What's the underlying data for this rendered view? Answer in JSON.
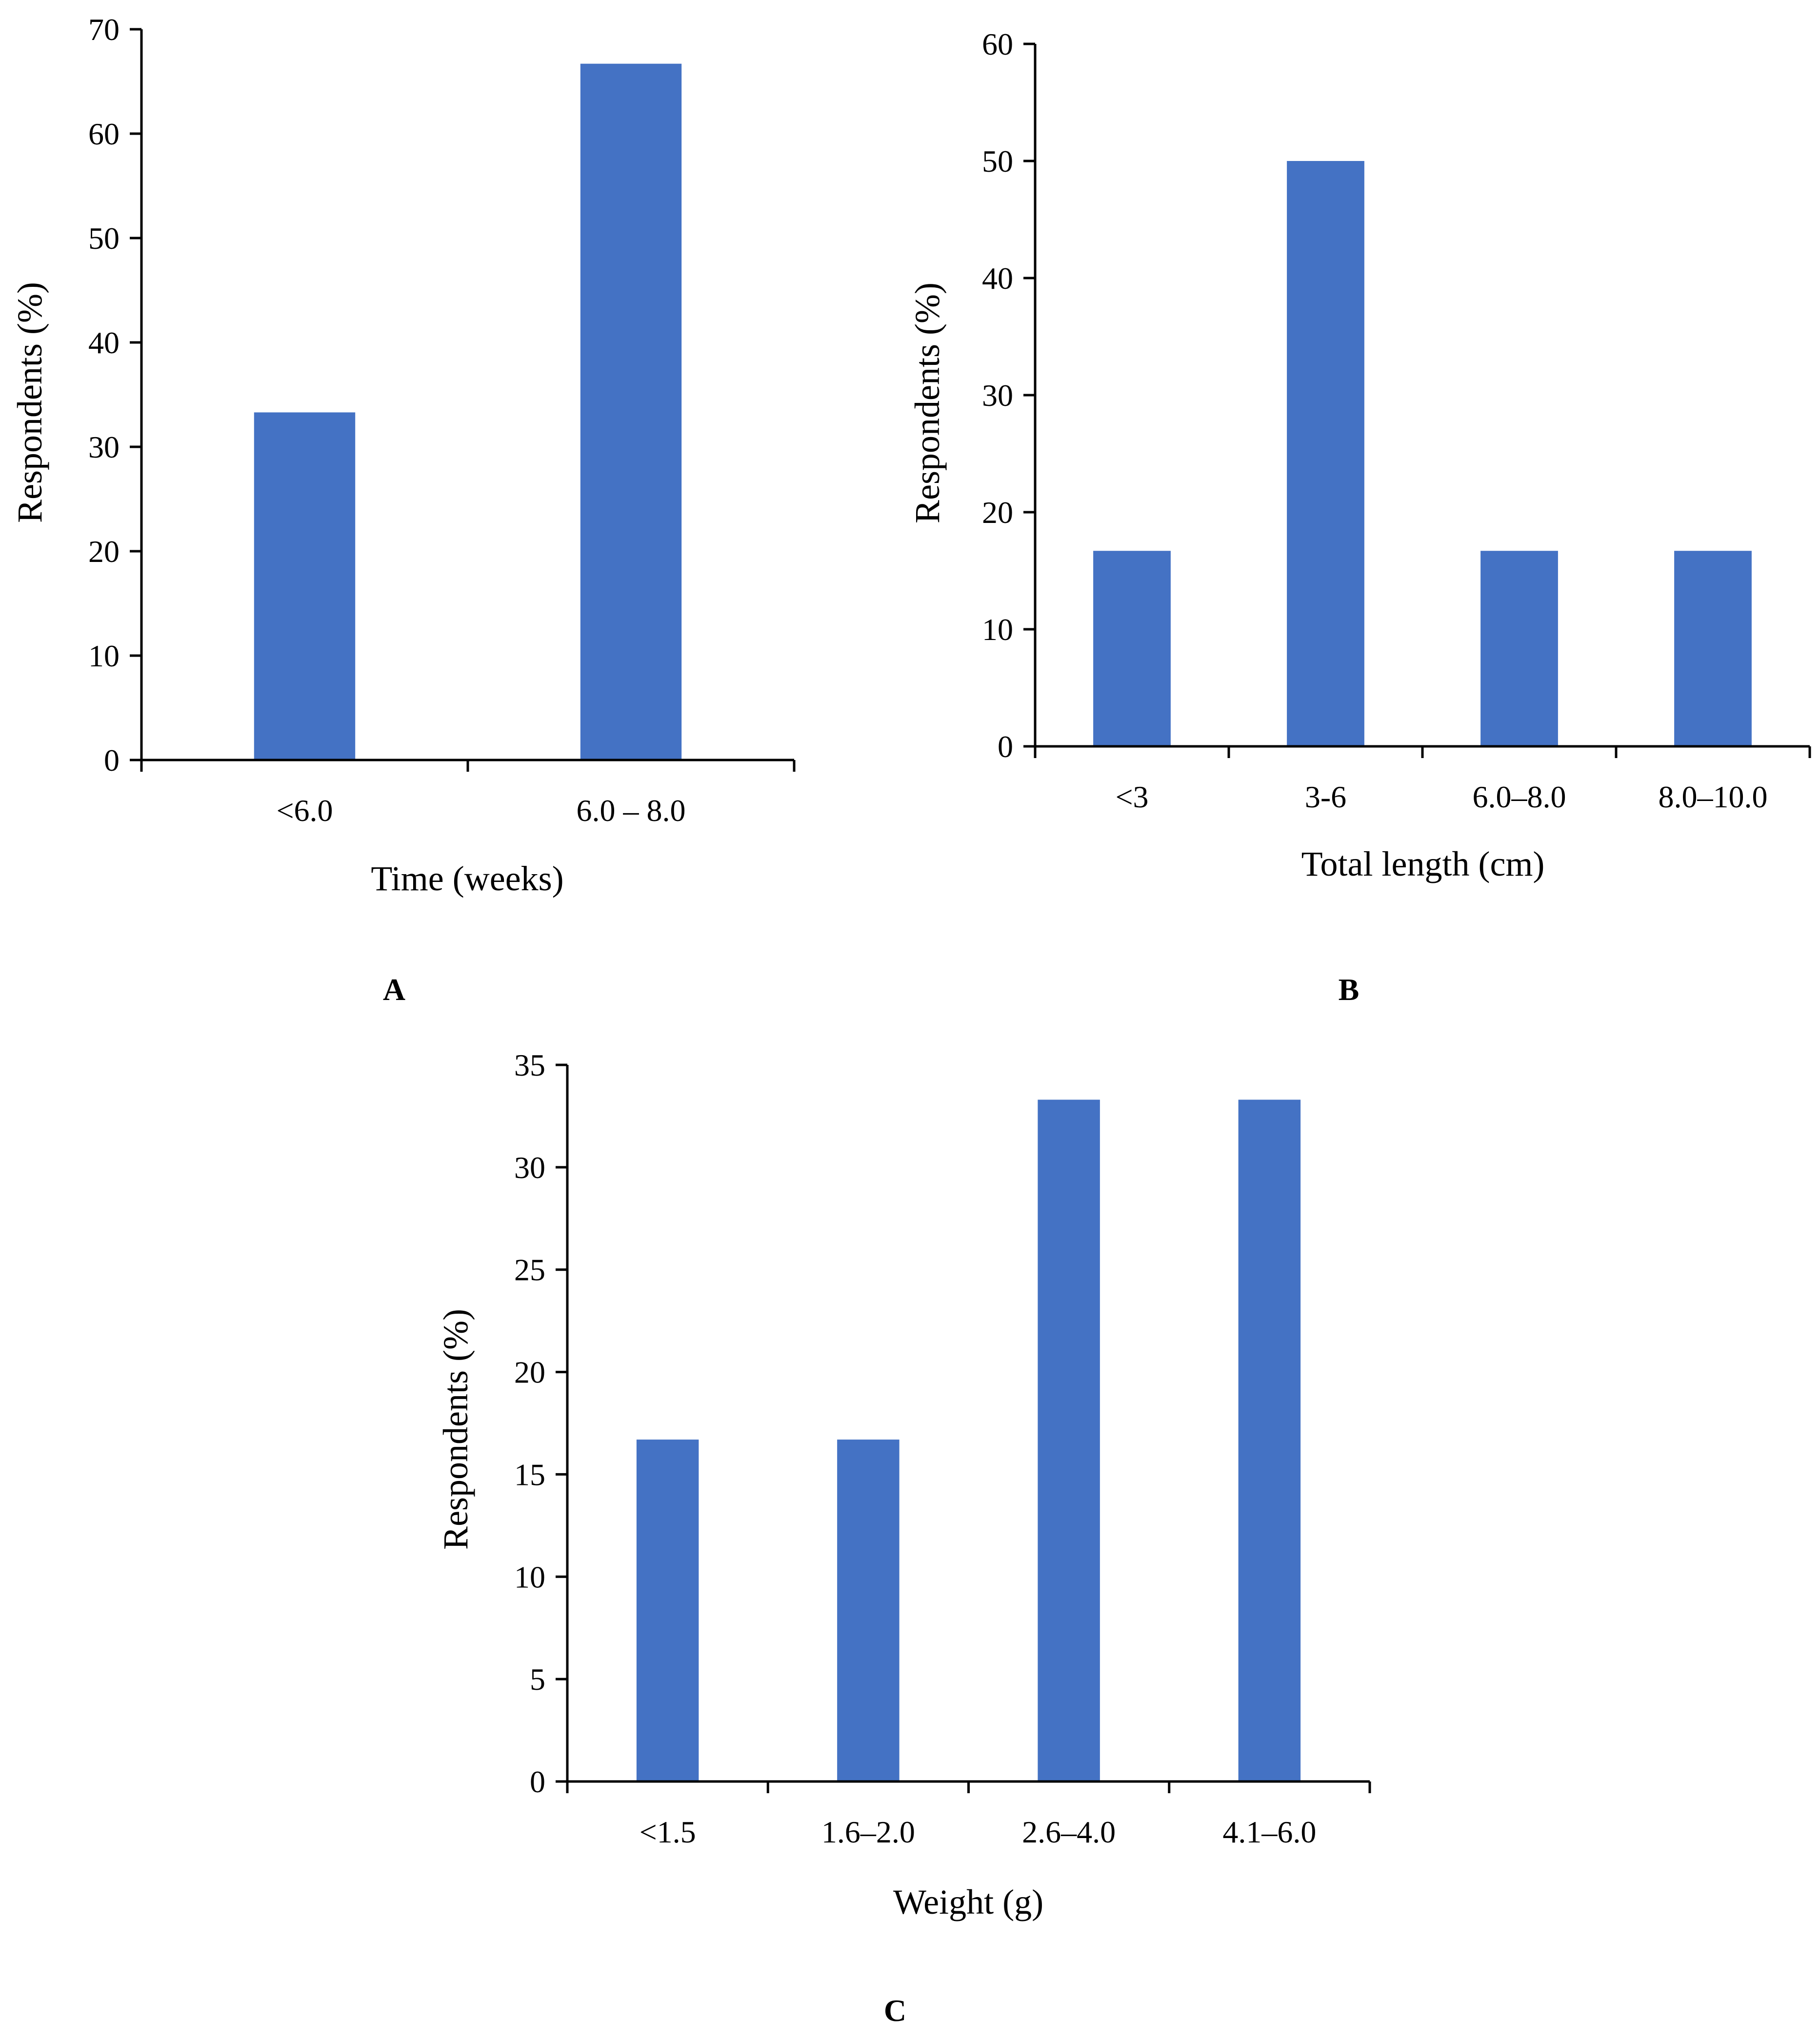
{
  "colors": {
    "bar": "#4472c4",
    "axis": "#000000",
    "background": "#ffffff"
  },
  "chart_data": [
    {
      "type": "bar",
      "panel_label": "A",
      "title": "",
      "categories": [
        "<6.0",
        "6.0 – 8.0"
      ],
      "values": [
        33.3,
        66.7
      ],
      "xlabel": "Time (weeks)",
      "ylabel": "Respondents (%)",
      "ylim": [
        0,
        70
      ],
      "yticks": [
        "0",
        "10",
        "20",
        "30",
        "40",
        "50",
        "60",
        "70"
      ],
      "grid": false
    },
    {
      "type": "bar",
      "panel_label": "B",
      "title": "",
      "categories": [
        "<3",
        "3-6",
        "6.0–8.0",
        "8.0–10.0"
      ],
      "values": [
        16.7,
        50,
        16.7,
        16.7
      ],
      "xlabel": "Total length (cm)",
      "ylabel": "Respondents (%)",
      "ylim": [
        0,
        60
      ],
      "yticks": [
        "0",
        "10",
        "20",
        "30",
        "40",
        "50",
        "60"
      ],
      "grid": false
    },
    {
      "type": "bar",
      "panel_label": "C",
      "title": "",
      "categories": [
        "<1.5",
        "1.6–2.0",
        "2.6–4.0",
        "4.1–6.0"
      ],
      "values": [
        16.7,
        16.7,
        33.3,
        33.3
      ],
      "xlabel": "Weight (g)",
      "ylabel": "Respondents (%)",
      "ylim": [
        0,
        35
      ],
      "yticks": [
        "0",
        "5",
        "10",
        "15",
        "20",
        "25",
        "30",
        "35"
      ],
      "grid": false
    }
  ]
}
